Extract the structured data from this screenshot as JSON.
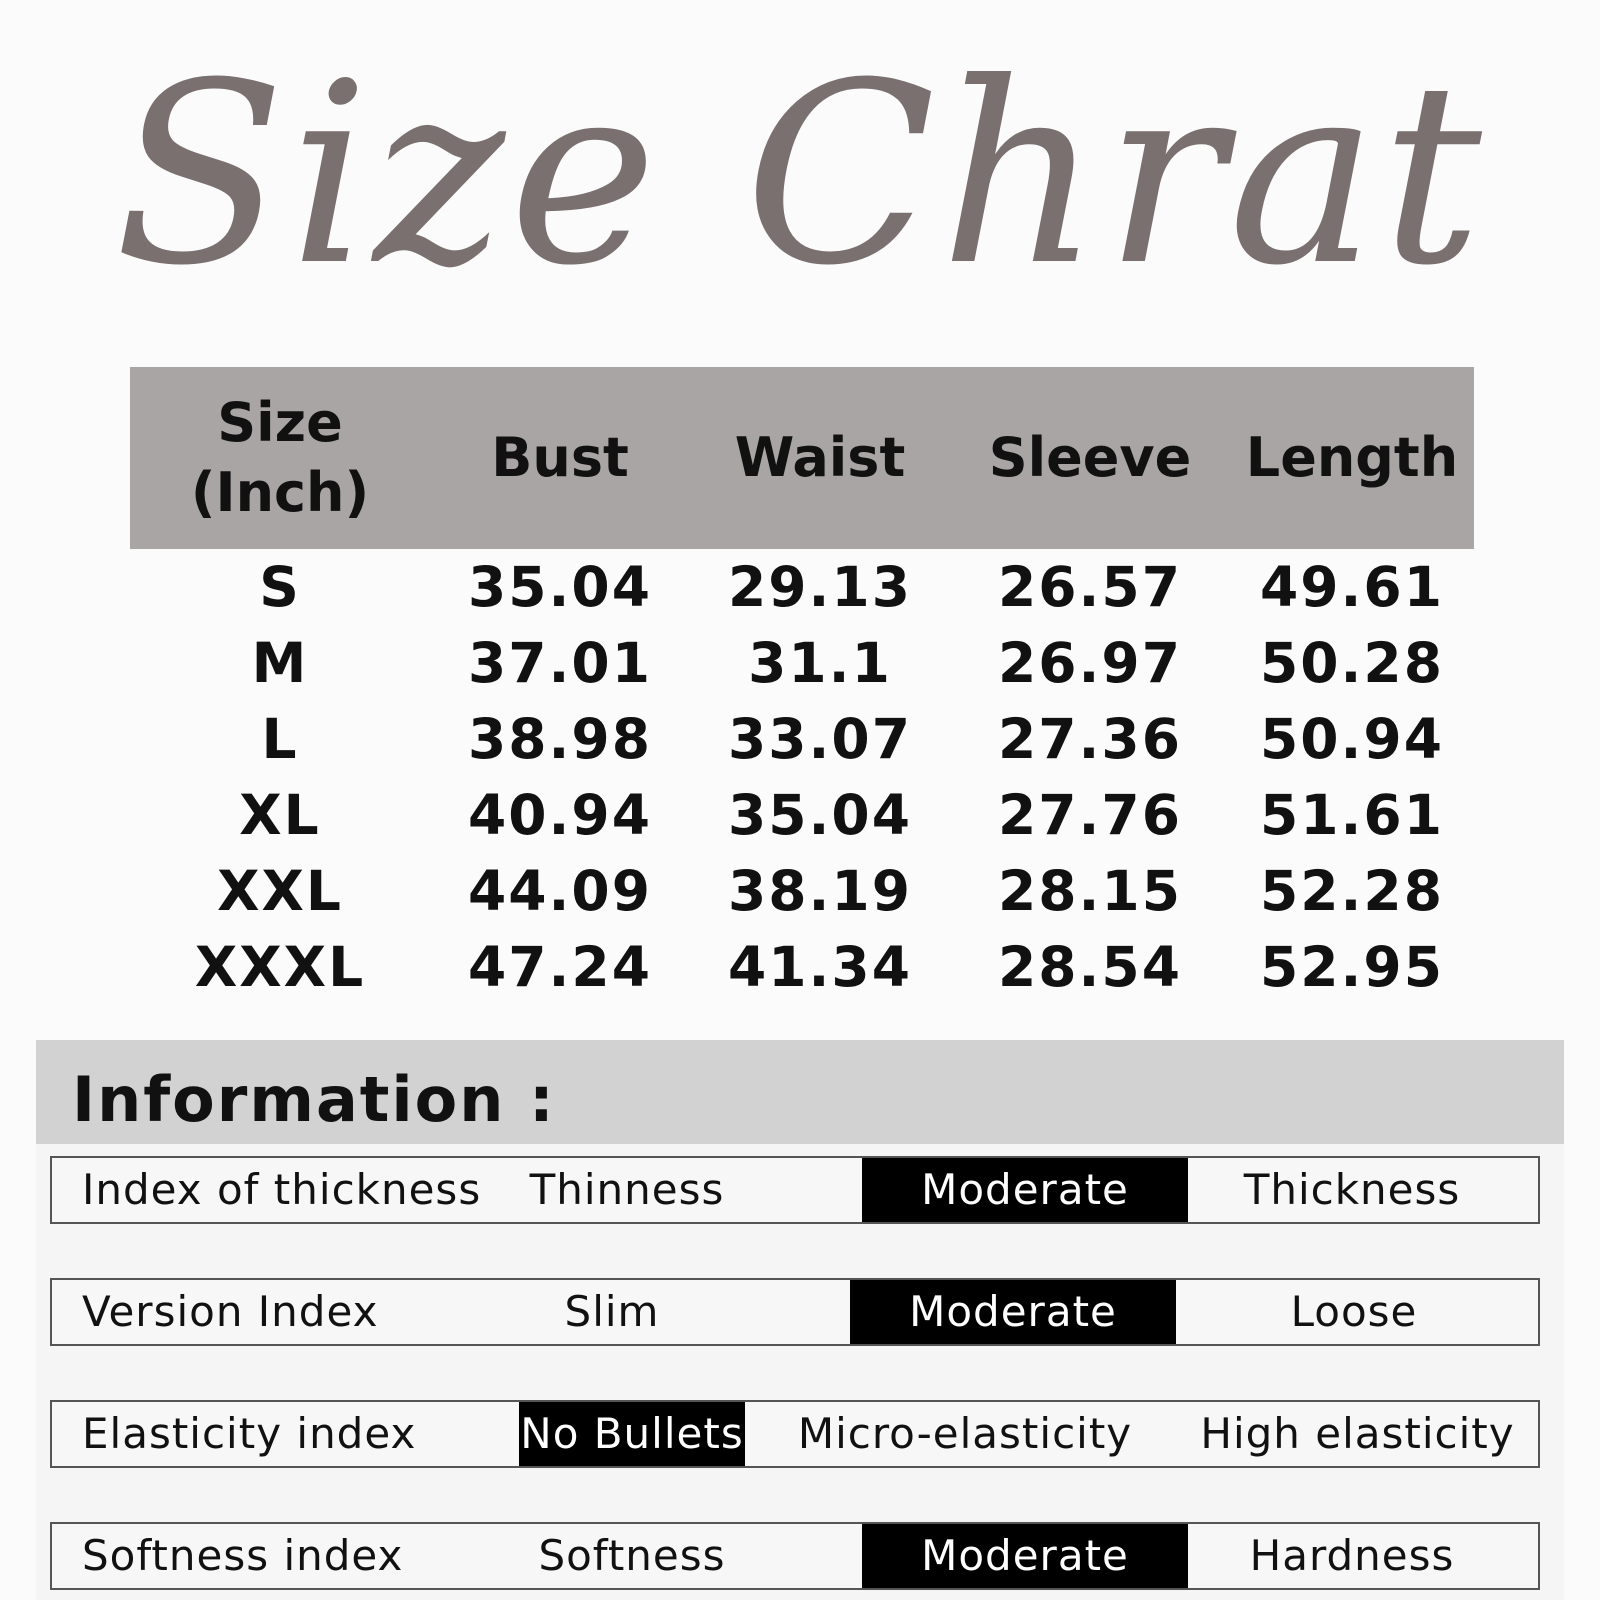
{
  "title": "Size Chrat",
  "table": {
    "headers": [
      "Size\n(Inch)",
      "Bust",
      "Waist",
      "Sleeve",
      "Length"
    ],
    "rows": [
      [
        "S",
        "35.04",
        "29.13",
        "26.57",
        "49.61"
      ],
      [
        "M",
        "37.01",
        "31.1",
        "26.97",
        "50.28"
      ],
      [
        "L",
        "38.98",
        "33.07",
        "27.36",
        "50.94"
      ],
      [
        "XL",
        "40.94",
        "35.04",
        "27.76",
        "51.61"
      ],
      [
        "XXL",
        "44.09",
        "38.19",
        "28.15",
        "52.28"
      ],
      [
        "XXXL",
        "47.24",
        "41.34",
        "28.54",
        "52.95"
      ]
    ]
  },
  "information": {
    "title": "Information :",
    "rows": [
      {
        "label": "Index of thickness",
        "options": [
          "Thinness",
          "Moderate",
          "Thickness"
        ],
        "selected": "Moderate"
      },
      {
        "label": "Version Index",
        "options": [
          "Slim",
          "Moderate",
          "Loose"
        ],
        "selected": "Moderate"
      },
      {
        "label": "Elasticity index",
        "options": [
          "No Bullets",
          "Micro-elasticity",
          "High elasticity"
        ],
        "selected": "No Bullets"
      },
      {
        "label": "Softness index",
        "options": [
          "Softness",
          "Moderate",
          "Hardness"
        ],
        "selected": "Moderate"
      }
    ]
  },
  "colors": {
    "title_text": "#7a7070",
    "table_header_bg": "#aaa5a5",
    "info_header_bg": "#d2d2d2",
    "selected_bg": "#000000",
    "selected_text": "#ffffff"
  }
}
